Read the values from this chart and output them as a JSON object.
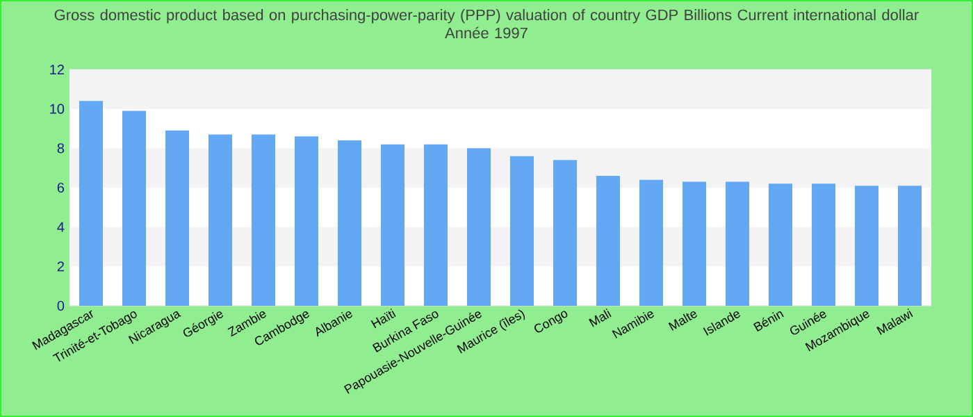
{
  "chart_data": {
    "type": "bar",
    "title": "Gross domestic product based on purchasing-power-parity (PPP) valuation of country GDP Billions Current international dollar",
    "subtitle": "Année 1997",
    "categories": [
      "Madagascar",
      "Trinité-et-Tobago",
      "Nicaragua",
      "Géorgie",
      "Zambie",
      "Cambodge",
      "Albanie",
      "Haïti",
      "Burkina Faso",
      "Papouasie-Nouvelle-Guinée",
      "Maurice (îles)",
      "Congo",
      "Mali",
      "Namibie",
      "Malte",
      "Islande",
      "Bénin",
      "Guinée",
      "Mozambique",
      "Malawi"
    ],
    "values": [
      10.4,
      9.9,
      8.9,
      8.7,
      8.7,
      8.6,
      8.4,
      8.2,
      8.2,
      8.0,
      7.6,
      7.4,
      6.6,
      6.4,
      6.3,
      6.3,
      6.2,
      6.2,
      6.1,
      6.1
    ],
    "color": "#63a8f4",
    "ylim": [
      0,
      12
    ],
    "yticks": [
      0,
      2,
      4,
      6,
      8,
      10,
      12
    ],
    "grid": "y"
  }
}
